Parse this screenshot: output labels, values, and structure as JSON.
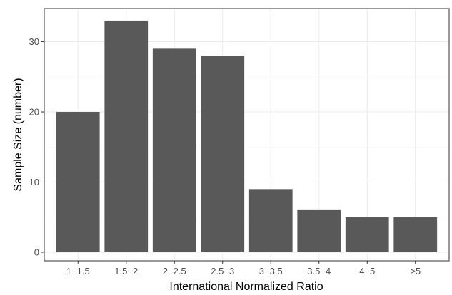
{
  "chart_data": {
    "type": "bar",
    "categories": [
      "1−1.5",
      "1.5−2",
      "2−2.5",
      "2.5−3",
      "3−3.5",
      "3.5−4",
      "4−5",
      ">5"
    ],
    "values": [
      20,
      33,
      29,
      28,
      9,
      6,
      5,
      5
    ],
    "xlabel": "International Normalized Ratio",
    "ylabel": "Sample Size (number)",
    "ylim": [
      0,
      35
    ],
    "yticks": [
      "0",
      "10",
      "20",
      "30"
    ],
    "grid": true,
    "bar_color": "#595959",
    "grid_major_color": "#ebebeb",
    "grid_minor_color": "#f5f5f5",
    "panel_border_color": "#333333"
  }
}
